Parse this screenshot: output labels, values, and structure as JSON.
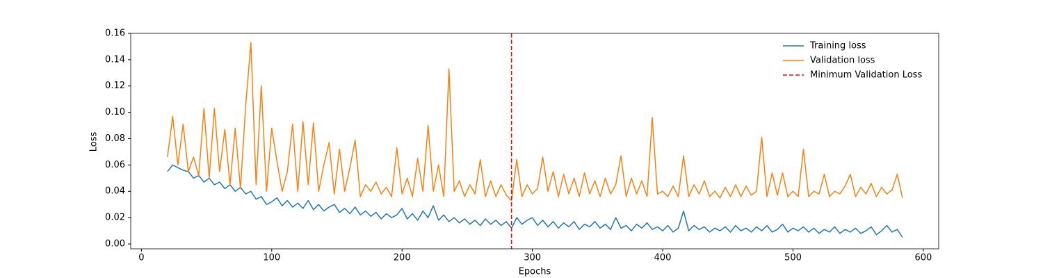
{
  "chart_data": {
    "type": "line",
    "xlabel": "Epochs",
    "ylabel": "Loss",
    "xlim": [
      -8.2,
      611.8
    ],
    "ylim": [
      -0.0037,
      0.16
    ],
    "xticks": [
      0,
      100,
      200,
      300,
      400,
      500,
      600
    ],
    "yticks": [
      {
        "value": 0,
        "label": "0.00"
      },
      0.02,
      0.04,
      0.06,
      0.08,
      {
        "value": 0.1,
        "label": "0.10"
      },
      0.12,
      0.14,
      0.16
    ],
    "grid": false,
    "legend": "upper right",
    "x": [
      20,
      24,
      28,
      32,
      36,
      40,
      44,
      48,
      52,
      56,
      60,
      64,
      68,
      72,
      76,
      80,
      84,
      88,
      92,
      96,
      100,
      104,
      108,
      112,
      116,
      120,
      124,
      128,
      132,
      136,
      140,
      144,
      148,
      152,
      156,
      160,
      164,
      168,
      172,
      176,
      180,
      184,
      188,
      192,
      196,
      200,
      204,
      208,
      212,
      216,
      220,
      224,
      228,
      232,
      236,
      240,
      244,
      248,
      252,
      256,
      260,
      264,
      268,
      272,
      276,
      280,
      284,
      288,
      292,
      296,
      300,
      304,
      308,
      312,
      316,
      320,
      324,
      328,
      332,
      336,
      340,
      344,
      348,
      352,
      356,
      360,
      364,
      368,
      372,
      376,
      380,
      384,
      388,
      392,
      396,
      400,
      404,
      408,
      412,
      416,
      420,
      424,
      428,
      432,
      436,
      440,
      444,
      448,
      452,
      456,
      460,
      464,
      468,
      472,
      476,
      480,
      484,
      488,
      492,
      496,
      500,
      504,
      508,
      512,
      516,
      520,
      524,
      528,
      532,
      536,
      540,
      544,
      548,
      552,
      556,
      560,
      564,
      568,
      572,
      576,
      580,
      584
    ],
    "series": [
      {
        "name": "Training loss",
        "color": "#1f77b4",
        "values": [
          0.055,
          0.06,
          0.058,
          0.056,
          0.055,
          0.05,
          0.052,
          0.047,
          0.05,
          0.045,
          0.047,
          0.042,
          0.045,
          0.04,
          0.043,
          0.038,
          0.04,
          0.034,
          0.036,
          0.03,
          0.032,
          0.035,
          0.029,
          0.033,
          0.028,
          0.031,
          0.027,
          0.033,
          0.026,
          0.03,
          0.025,
          0.028,
          0.03,
          0.024,
          0.027,
          0.023,
          0.028,
          0.022,
          0.025,
          0.021,
          0.024,
          0.019,
          0.023,
          0.02,
          0.022,
          0.027,
          0.019,
          0.023,
          0.018,
          0.025,
          0.02,
          0.029,
          0.018,
          0.022,
          0.017,
          0.02,
          0.016,
          0.019,
          0.015,
          0.018,
          0.014,
          0.019,
          0.015,
          0.018,
          0.014,
          0.017,
          0.012,
          0.02,
          0.015,
          0.018,
          0.02,
          0.014,
          0.018,
          0.013,
          0.017,
          0.012,
          0.016,
          0.013,
          0.017,
          0.011,
          0.015,
          0.013,
          0.017,
          0.012,
          0.015,
          0.011,
          0.02,
          0.012,
          0.014,
          0.01,
          0.015,
          0.012,
          0.016,
          0.011,
          0.013,
          0.01,
          0.014,
          0.009,
          0.012,
          0.025,
          0.01,
          0.014,
          0.011,
          0.013,
          0.009,
          0.012,
          0.01,
          0.013,
          0.009,
          0.014,
          0.01,
          0.012,
          0.009,
          0.013,
          0.01,
          0.014,
          0.009,
          0.011,
          0.015,
          0.009,
          0.012,
          0.01,
          0.013,
          0.009,
          0.012,
          0.008,
          0.011,
          0.009,
          0.013,
          0.008,
          0.011,
          0.009,
          0.012,
          0.008,
          0.01,
          0.013,
          0.007,
          0.01,
          0.014,
          0.009,
          0.011,
          0.005
        ]
      },
      {
        "name": "Validation loss",
        "color": "#ff7f0e",
        "values": [
          0.066,
          0.097,
          0.06,
          0.091,
          0.055,
          0.066,
          0.052,
          0.103,
          0.05,
          0.103,
          0.055,
          0.087,
          0.045,
          0.088,
          0.042,
          0.105,
          0.153,
          0.045,
          0.12,
          0.04,
          0.088,
          0.063,
          0.04,
          0.055,
          0.091,
          0.04,
          0.093,
          0.045,
          0.092,
          0.04,
          0.06,
          0.077,
          0.038,
          0.072,
          0.04,
          0.058,
          0.079,
          0.036,
          0.045,
          0.04,
          0.047,
          0.038,
          0.043,
          0.036,
          0.073,
          0.038,
          0.05,
          0.036,
          0.065,
          0.04,
          0.09,
          0.04,
          0.06,
          0.036,
          0.133,
          0.04,
          0.048,
          0.036,
          0.045,
          0.038,
          0.064,
          0.036,
          0.048,
          0.036,
          0.045,
          0.037,
          0.033,
          0.064,
          0.036,
          0.045,
          0.038,
          0.042,
          0.066,
          0.04,
          0.055,
          0.036,
          0.053,
          0.038,
          0.05,
          0.036,
          0.054,
          0.038,
          0.048,
          0.036,
          0.05,
          0.038,
          0.045,
          0.067,
          0.036,
          0.05,
          0.038,
          0.048,
          0.036,
          0.096,
          0.038,
          0.04,
          0.036,
          0.044,
          0.036,
          0.067,
          0.036,
          0.045,
          0.038,
          0.048,
          0.036,
          0.04,
          0.035,
          0.043,
          0.036,
          0.045,
          0.036,
          0.044,
          0.037,
          0.04,
          0.081,
          0.036,
          0.054,
          0.037,
          0.054,
          0.036,
          0.04,
          0.036,
          0.072,
          0.036,
          0.04,
          0.038,
          0.053,
          0.036,
          0.04,
          0.038,
          0.044,
          0.053,
          0.036,
          0.043,
          0.038,
          0.046,
          0.036,
          0.043,
          0.038,
          0.041,
          0.053,
          0.035
        ]
      }
    ],
    "vline": {
      "name": "Minimum Validation Loss",
      "x": 284,
      "color": "#ff0000"
    }
  }
}
